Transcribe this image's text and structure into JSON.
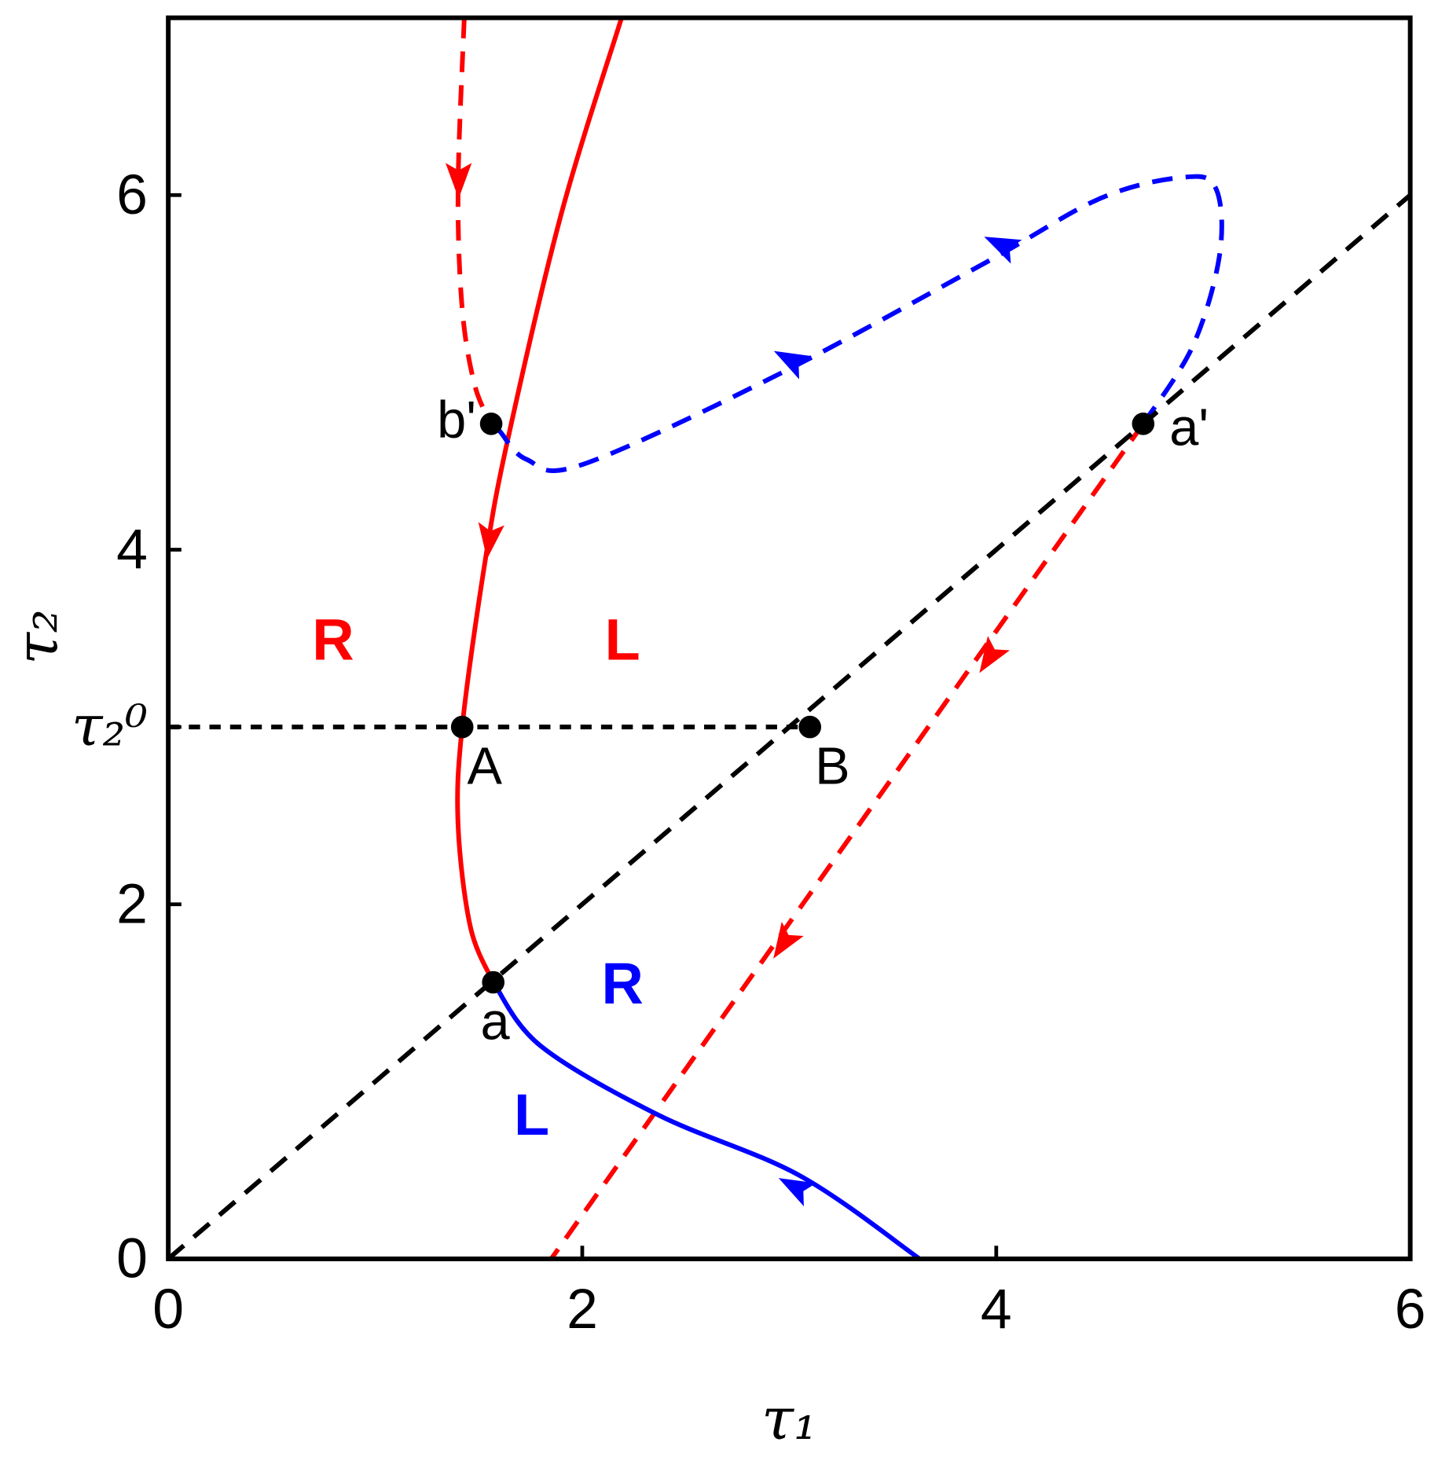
{
  "chart_data": {
    "type": "line",
    "x_label": "τ₁",
    "y_label": "τ₂",
    "xlim": [
      0,
      6
    ],
    "ylim": [
      0,
      7
    ],
    "xticks": [
      0,
      2,
      4,
      6
    ],
    "yticks": [
      0,
      2,
      {
        "value": 3,
        "label": "τ₂⁰"
      },
      4,
      6
    ],
    "series": [
      {
        "color": "#ff0000",
        "style": "solid",
        "x": [
          2.19,
          1.9,
          1.64,
          1.53,
          1.42,
          1.4,
          1.46,
          1.57
        ],
        "y": [
          7.0,
          5.9,
          4.62,
          3.93,
          3.0,
          2.45,
          1.87,
          1.56
        ]
      },
      {
        "color": "#ff0000",
        "style": "dashed",
        "x": [
          1.43,
          1.4,
          1.42,
          1.48,
          1.56
        ],
        "y": [
          7.0,
          6.04,
          5.36,
          4.93,
          4.71
        ]
      },
      {
        "color": "#ff0000",
        "style": "dashed",
        "x": [
          4.71,
          1.85
        ],
        "y": [
          4.71,
          0
        ]
      },
      {
        "color": "#0000ff",
        "style": "solid",
        "x": [
          1.57,
          1.8,
          2.37,
          3.05,
          3.63
        ],
        "y": [
          1.56,
          1.2,
          0.81,
          0.47,
          0
        ]
      },
      {
        "color": "#0000ff",
        "style": "dashed",
        "x": [
          4.71,
          4.95,
          5.08,
          5.06,
          4.9,
          4.5,
          3.95,
          2.95,
          2.0,
          1.73,
          1.6,
          1.56
        ],
        "y": [
          4.71,
          5.15,
          5.67,
          6.04,
          6.1,
          5.98,
          5.62,
          4.99,
          4.48,
          4.51,
          4.67,
          4.71
        ]
      },
      {
        "color": "#000000",
        "style": "dashed",
        "x": [
          0,
          6
        ],
        "y": [
          0,
          6
        ]
      },
      {
        "color": "#000000",
        "style": "dotted",
        "x": [
          0,
          3.1
        ],
        "y": [
          3.0,
          3.0
        ]
      }
    ],
    "points": [
      {
        "label": "b'",
        "x": 1.56,
        "y": 4.71
      },
      {
        "label": "a'",
        "x": 4.71,
        "y": 4.71
      },
      {
        "label": "A",
        "x": 1.42,
        "y": 3.0
      },
      {
        "label": "B",
        "x": 3.1,
        "y": 3.0
      },
      {
        "label": "a",
        "x": 1.57,
        "y": 1.56
      }
    ],
    "annotations": [
      {
        "text": "R",
        "color": "#ff0000"
      },
      {
        "text": "L",
        "color": "#ff0000"
      },
      {
        "text": "R",
        "color": "#0000ff"
      },
      {
        "text": "L",
        "color": "#0000ff"
      }
    ]
  }
}
